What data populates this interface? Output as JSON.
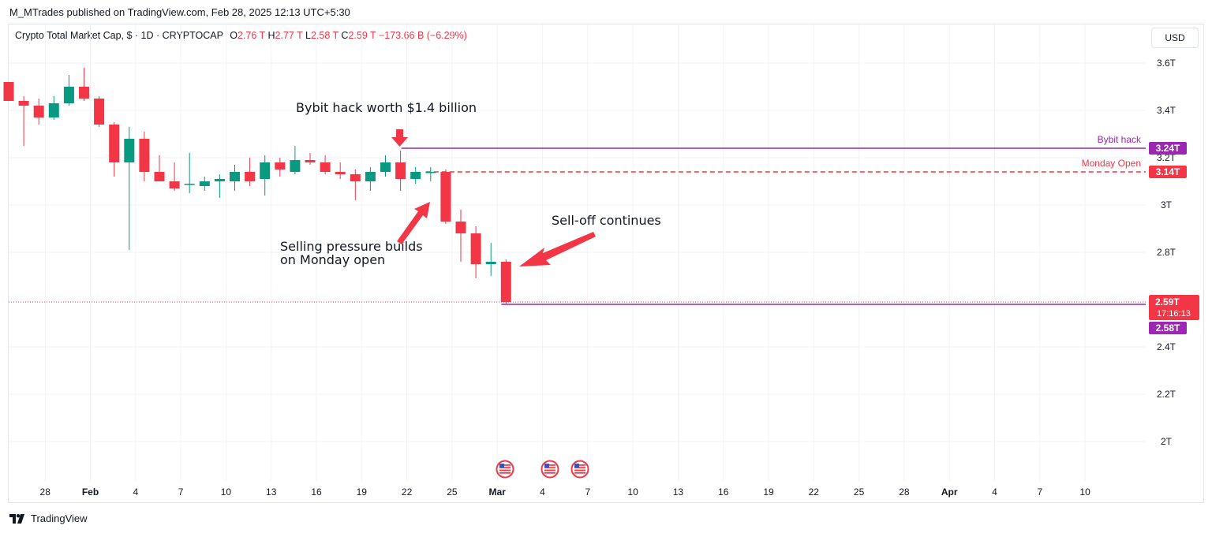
{
  "header": {
    "publish_line": "M_MTrades published on TradingView.com, Feb 28, 2025 12:13 UTC+5:30"
  },
  "legend": {
    "symbol": "Crypto Total Market Cap, $ · 1D · CRYPTOCAP",
    "o_label": "O",
    "o_value": "2.76 T",
    "h_label": "H",
    "h_value": "2.77 T",
    "l_label": "L",
    "l_value": "2.58 T",
    "c_label": "C",
    "c_value": "2.59 T",
    "change": "−173.66 B (−6.29%)"
  },
  "currency_button": "USD",
  "footer": {
    "brand": "TradingView"
  },
  "colors": {
    "up": "#089981",
    "down": "#f23645",
    "purple": "#9c27b0",
    "grid": "#f0f3fa",
    "text": "#131722",
    "axis_text": "#131722"
  },
  "chart_data": {
    "type": "candlestick",
    "y_unit": "T",
    "ylim": [
      1.93,
      3.65
    ],
    "y_ticks": [
      "3.6T",
      "3.4T",
      "3.2T",
      "3T",
      "2.8T",
      "2.6T",
      "2.4T",
      "2.2T",
      "2T"
    ],
    "x_ticks": [
      "28",
      "Feb",
      "4",
      "7",
      "10",
      "13",
      "16",
      "19",
      "22",
      "25",
      "Mar",
      "4",
      "7",
      "10",
      "13",
      "16",
      "19",
      "22",
      "25",
      "28",
      "Apr",
      "4",
      "7",
      "10"
    ],
    "candles": [
      {
        "date": "2025-01-26",
        "o": 3.52,
        "h": 3.52,
        "l": 3.44,
        "c": 3.44
      },
      {
        "date": "2025-01-27",
        "o": 3.44,
        "h": 3.46,
        "l": 3.25,
        "c": 3.42
      },
      {
        "date": "2025-01-28",
        "o": 3.42,
        "h": 3.45,
        "l": 3.34,
        "c": 3.37
      },
      {
        "date": "2025-01-29",
        "o": 3.37,
        "h": 3.46,
        "l": 3.36,
        "c": 3.43
      },
      {
        "date": "2025-01-30",
        "o": 3.43,
        "h": 3.55,
        "l": 3.42,
        "c": 3.5
      },
      {
        "date": "2025-01-31",
        "o": 3.5,
        "h": 3.58,
        "l": 3.44,
        "c": 3.45
      },
      {
        "date": "2025-02-01",
        "o": 3.45,
        "h": 3.46,
        "l": 3.33,
        "c": 3.34
      },
      {
        "date": "2025-02-02",
        "o": 3.34,
        "h": 3.35,
        "l": 3.12,
        "c": 3.18
      },
      {
        "date": "2025-02-03",
        "o": 3.18,
        "h": 3.33,
        "l": 2.81,
        "c": 3.28
      },
      {
        "date": "2025-02-04",
        "o": 3.28,
        "h": 3.31,
        "l": 3.1,
        "c": 3.14
      },
      {
        "date": "2025-02-05",
        "o": 3.14,
        "h": 3.21,
        "l": 3.1,
        "c": 3.1
      },
      {
        "date": "2025-02-06",
        "o": 3.1,
        "h": 3.18,
        "l": 3.06,
        "c": 3.07
      },
      {
        "date": "2025-02-07",
        "o": 3.09,
        "h": 3.22,
        "l": 3.05,
        "c": 3.09
      },
      {
        "date": "2025-02-08",
        "o": 3.08,
        "h": 3.12,
        "l": 3.06,
        "c": 3.1
      },
      {
        "date": "2025-02-09",
        "o": 3.1,
        "h": 3.13,
        "l": 3.03,
        "c": 3.11
      },
      {
        "date": "2025-02-10",
        "o": 3.1,
        "h": 3.17,
        "l": 3.06,
        "c": 3.14
      },
      {
        "date": "2025-02-11",
        "o": 3.14,
        "h": 3.2,
        "l": 3.08,
        "c": 3.1
      },
      {
        "date": "2025-02-12",
        "o": 3.11,
        "h": 3.21,
        "l": 3.04,
        "c": 3.18
      },
      {
        "date": "2025-02-13",
        "o": 3.18,
        "h": 3.2,
        "l": 3.12,
        "c": 3.15
      },
      {
        "date": "2025-02-14",
        "o": 3.14,
        "h": 3.25,
        "l": 3.13,
        "c": 3.19
      },
      {
        "date": "2025-02-15",
        "o": 3.19,
        "h": 3.22,
        "l": 3.17,
        "c": 3.18
      },
      {
        "date": "2025-02-16",
        "o": 3.18,
        "h": 3.21,
        "l": 3.13,
        "c": 3.14
      },
      {
        "date": "2025-02-17",
        "o": 3.14,
        "h": 3.18,
        "l": 3.11,
        "c": 3.13
      },
      {
        "date": "2025-02-18",
        "o": 3.13,
        "h": 3.15,
        "l": 3.02,
        "c": 3.1
      },
      {
        "date": "2025-02-19",
        "o": 3.1,
        "h": 3.16,
        "l": 3.06,
        "c": 3.14
      },
      {
        "date": "2025-02-20",
        "o": 3.14,
        "h": 3.21,
        "l": 3.12,
        "c": 3.18
      },
      {
        "date": "2025-02-21",
        "o": 3.18,
        "h": 3.23,
        "l": 3.06,
        "c": 3.11
      },
      {
        "date": "2025-02-22",
        "o": 3.11,
        "h": 3.16,
        "l": 3.09,
        "c": 3.14
      },
      {
        "date": "2025-02-23",
        "o": 3.14,
        "h": 3.16,
        "l": 3.1,
        "c": 3.14
      },
      {
        "date": "2025-02-24",
        "o": 3.14,
        "h": 3.15,
        "l": 2.92,
        "c": 2.93
      },
      {
        "date": "2025-02-25",
        "o": 2.93,
        "h": 2.98,
        "l": 2.76,
        "c": 2.88
      },
      {
        "date": "2025-02-26",
        "o": 2.88,
        "h": 2.91,
        "l": 2.69,
        "c": 2.75
      },
      {
        "date": "2025-02-27",
        "o": 2.75,
        "h": 2.84,
        "l": 2.7,
        "c": 2.76
      },
      {
        "date": "2025-02-28",
        "o": 2.76,
        "h": 2.77,
        "l": 2.58,
        "c": 2.59
      }
    ],
    "hlines": [
      {
        "label": "Bybit hack",
        "value": 3.24,
        "badge": "3.24T",
        "style": "solid",
        "color": "#9c27b0"
      },
      {
        "label": "Monday Open",
        "value": 3.14,
        "badge": "3.14T",
        "style": "dashed",
        "color": "#f23645"
      },
      {
        "label": "",
        "value": 2.58,
        "badge": "2.58T",
        "style": "solid",
        "color": "#9c27b0"
      }
    ],
    "last_price_badge": {
      "value": 2.59,
      "price": "2.59T",
      "countdown": "17:16:13"
    },
    "annotations": [
      {
        "text": "Bybit hack worth $1.4 billion"
      },
      {
        "text": "Selling pressure builds\non Monday open"
      },
      {
        "text": "Sell-off continues"
      }
    ],
    "event_flags": [
      "us-flag-icon",
      "us-flag-icon",
      "us-flag-icon"
    ]
  }
}
